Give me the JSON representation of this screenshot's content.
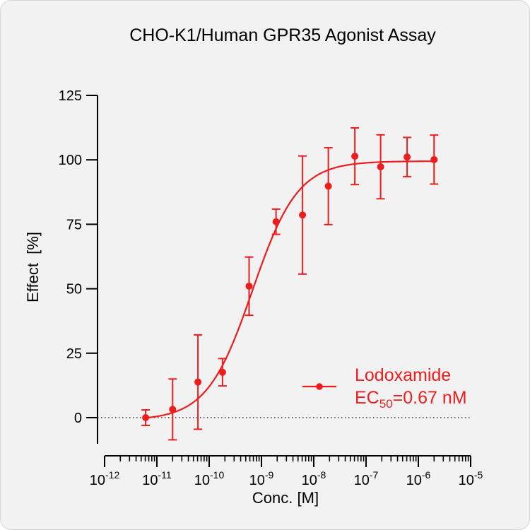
{
  "chart_data": {
    "type": "scatter",
    "title": "CHO-K1/Human GPR35 Agonist Assay",
    "xlabel": "Conc. [M]",
    "ylabel": "Effect  [%]",
    "x_scale": "log",
    "xlim": [
      1e-12,
      1e-05
    ],
    "ylim": [
      -10,
      125
    ],
    "x_ticks": [
      {
        "base": "10",
        "exp": "-12"
      },
      {
        "base": "10",
        "exp": "-11"
      },
      {
        "base": "10",
        "exp": "-10"
      },
      {
        "base": "10",
        "exp": "-9"
      },
      {
        "base": "10",
        "exp": "-8"
      },
      {
        "base": "10",
        "exp": "-7"
      },
      {
        "base": "10",
        "exp": "-6"
      },
      {
        "base": "10",
        "exp": "-5"
      }
    ],
    "y_ticks": [
      "0",
      "25",
      "50",
      "75",
      "100",
      "125"
    ],
    "reference_line": {
      "y": 0,
      "style": "dotted"
    },
    "series": [
      {
        "name": "Lodoxamide",
        "color": "#ee1c1c",
        "ec50_label": {
          "prefix": "EC",
          "sub": "50",
          "suffix": "=0.67 nM"
        },
        "ec50_M": 6.7e-10,
        "points": [
          {
            "x": 6.1e-12,
            "y": 0,
            "err": 3
          },
          {
            "x": 2e-11,
            "y": 3.2,
            "err": 11.8
          },
          {
            "x": 6.1e-11,
            "y": 13.8,
            "err": 18.3
          },
          {
            "x": 1.8e-10,
            "y": 17.6,
            "err": 5.3
          },
          {
            "x": 5.8e-10,
            "y": 51,
            "err": 11.3
          },
          {
            "x": 1.9e-09,
            "y": 76,
            "err": 4.9
          },
          {
            "x": 6.1e-09,
            "y": 78.6,
            "err": 22.9
          },
          {
            "x": 1.9e-08,
            "y": 89.8,
            "err": 14.9
          },
          {
            "x": 6.1e-08,
            "y": 101.4,
            "err": 11
          },
          {
            "x": 1.9e-07,
            "y": 97.3,
            "err": 12.4
          },
          {
            "x": 6.1e-07,
            "y": 101.1,
            "err": 7.6
          },
          {
            "x": 2e-06,
            "y": 100.1,
            "err": 9.5
          }
        ],
        "fit": {
          "bottom": -1,
          "top": 99.5,
          "hill": 1
        }
      }
    ],
    "legend_position": "right-middle"
  }
}
